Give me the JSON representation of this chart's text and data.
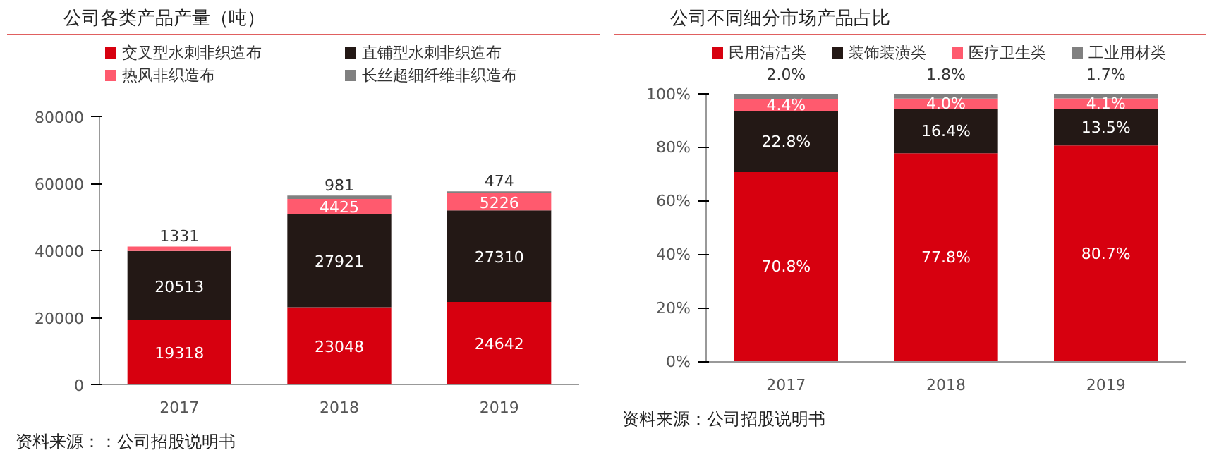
{
  "chart_data": [
    {
      "type": "bar",
      "stacked": true,
      "title": "公司各类产品产量（吨）",
      "categories": [
        "2017",
        "2018",
        "2019"
      ],
      "series": [
        {
          "name": "交叉型水刺非织造布",
          "color": "#d7000f",
          "values": [
            19318,
            23048,
            24642
          ]
        },
        {
          "name": "直铺型水刺非织造布",
          "color": "#231815",
          "values": [
            20513,
            27921,
            27310
          ]
        },
        {
          "name": "热风非织造布",
          "color": "#ff5a6e",
          "values": [
            1331,
            4425,
            5226
          ]
        },
        {
          "name": "长丝超细纤维非织造布",
          "color": "#808080",
          "values": [
            null,
            981,
            474
          ]
        }
      ],
      "ylim": [
        0,
        80000
      ],
      "yticks": [
        0,
        20000,
        40000,
        60000,
        80000
      ],
      "grid": false,
      "legend": "top",
      "data_labels": true,
      "annotations": [
        "资料来源：：公司招股说明书"
      ]
    },
    {
      "type": "bar",
      "stacked": true,
      "title": "公司不同细分市场产品占比",
      "categories": [
        "2017",
        "2018",
        "2019"
      ],
      "series": [
        {
          "name": "民用清洁类",
          "color": "#d7000f",
          "values": [
            70.8,
            77.8,
            80.7
          ],
          "value_labels": [
            "70.8%",
            "77.8%",
            "80.7%"
          ]
        },
        {
          "name": "装饰装潢类",
          "color": "#231815",
          "values": [
            22.8,
            16.4,
            13.5
          ],
          "value_labels": [
            "22.8%",
            "16.4%",
            "13.5%"
          ]
        },
        {
          "name": "医疗卫生类",
          "color": "#ff5a6e",
          "values": [
            4.4,
            4.0,
            4.1
          ],
          "value_labels": [
            "4.4%",
            "4.0%",
            "4.1%"
          ]
        },
        {
          "name": "工业用材类",
          "color": "#808080",
          "values": [
            2.0,
            1.8,
            1.7
          ],
          "value_labels": [
            "2.0%",
            "1.8%",
            "1.7%"
          ]
        }
      ],
      "ylim": [
        0,
        100
      ],
      "yticks": [
        {
          "value": 0,
          "label": "0%"
        },
        {
          "value": 20,
          "label": "20%"
        },
        {
          "value": 40,
          "label": "40%"
        },
        {
          "value": 60,
          "label": "60%"
        },
        {
          "value": 80,
          "label": "80%"
        },
        {
          "value": 100,
          "label": "100%"
        }
      ],
      "grid": false,
      "legend": "top",
      "annotations": [
        "资料来源：公司招股说明书"
      ]
    }
  ]
}
